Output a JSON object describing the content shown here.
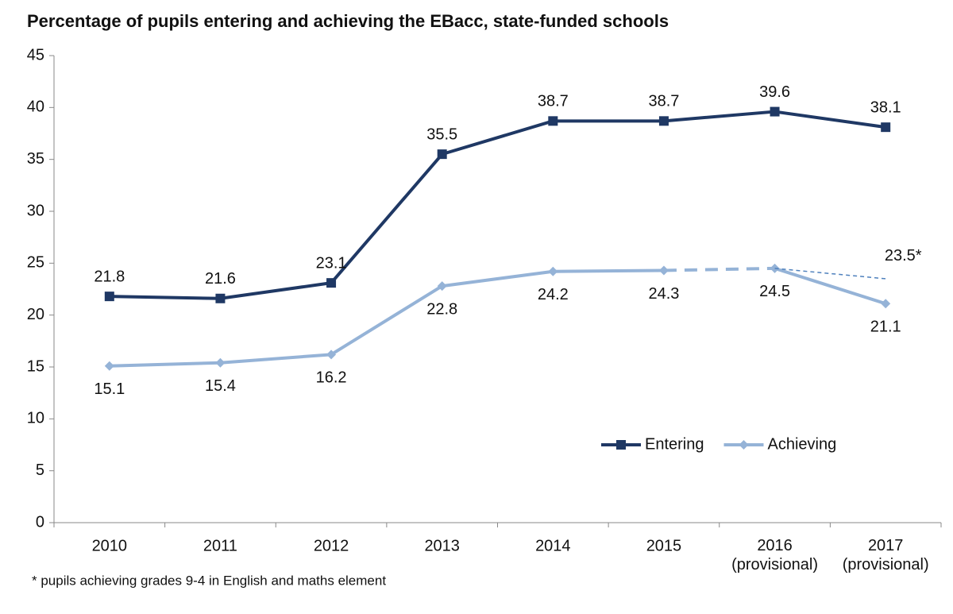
{
  "chart_data": {
    "type": "line",
    "title": "Percentage of pupils entering and achieving the EBacc, state-funded schools",
    "categories": [
      "2010",
      "2011",
      "2012",
      "2013",
      "2014",
      "2015",
      "2016 (provisional)",
      "2017 (provisional)"
    ],
    "series": [
      {
        "name": "Entering",
        "color": "#1f3864",
        "marker": "square",
        "values": [
          21.8,
          21.6,
          23.1,
          35.5,
          38.7,
          38.7,
          39.6,
          38.1
        ]
      },
      {
        "name": "Achieving",
        "color": "#95b3d7",
        "marker": "diamond",
        "values": [
          15.1,
          15.4,
          16.2,
          22.8,
          24.2,
          24.3,
          24.5,
          21.1
        ],
        "dashed_segment": [
          "2015",
          "2016 (provisional)"
        ]
      }
    ],
    "annotation": {
      "text": "23.5*",
      "value": 23.5
    },
    "footnote": "* pupils achieving grades 9-4 in English and maths element",
    "ylim": [
      0,
      45
    ],
    "yticks": [
      0,
      5,
      10,
      15,
      20,
      25,
      30,
      35,
      40,
      45
    ],
    "grid": false,
    "legend": "lower right"
  }
}
